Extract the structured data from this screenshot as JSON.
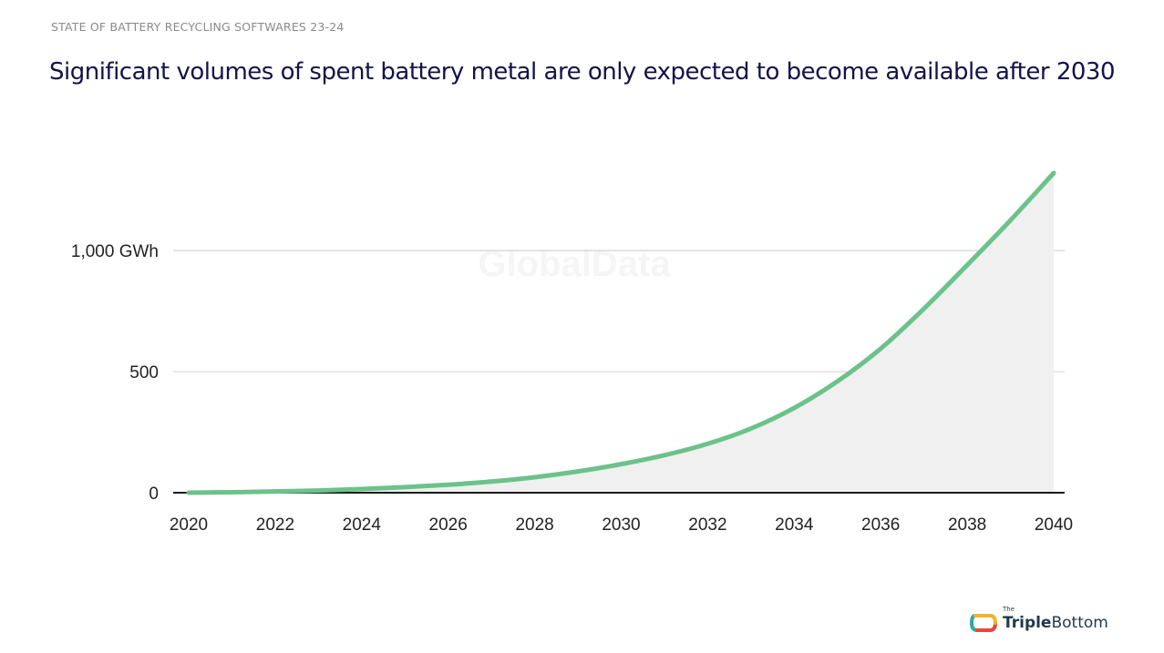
{
  "header": {
    "eyebrow": "STATE OF BATTERY RECYCLING SOFTWARES 23-24",
    "headline": "Significant volumes of spent battery metal are only expected to become available after 2030"
  },
  "chart_data": {
    "type": "area",
    "x": [
      2020,
      2021,
      2022,
      2023,
      2024,
      2025,
      2026,
      2027,
      2028,
      2029,
      2030,
      2031,
      2032,
      2033,
      2034,
      2035,
      2036,
      2037,
      2038,
      2039,
      2040
    ],
    "series": [
      {
        "values": [
          0,
          2,
          5,
          9,
          15,
          23,
          33,
          46,
          64,
          88,
          118,
          155,
          202,
          265,
          350,
          460,
          595,
          760,
          940,
          1125,
          1320
        ]
      }
    ],
    "xticks": [
      "2020",
      "2022",
      "2024",
      "2026",
      "2028",
      "2030",
      "2032",
      "2034",
      "2036",
      "2038",
      "2040"
    ],
    "yticks": [
      {
        "value": 0,
        "label": "0"
      },
      {
        "value": 500,
        "label": "500"
      },
      {
        "value": 1000,
        "label": "1,000 GWh"
      }
    ],
    "xlim": [
      2020,
      2040
    ],
    "ylim": [
      0,
      1320
    ],
    "grid": true,
    "watermark": "GlobalData",
    "line_color": "#6cc28a",
    "fill_color": "#f0f0f0"
  },
  "logo": {
    "the": "The",
    "bold": "Triple",
    "regular": "Bottom",
    "colors": [
      "#2fa8a0",
      "#e8473a",
      "#f2b233"
    ]
  }
}
